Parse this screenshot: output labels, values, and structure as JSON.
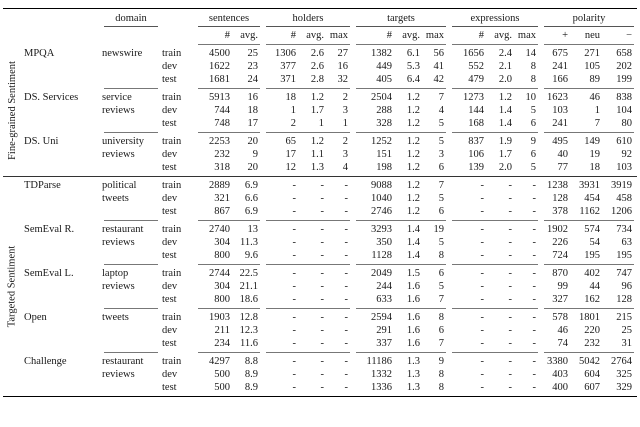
{
  "table": {
    "header": {
      "domain_label": "domain",
      "groups": [
        {
          "label": "sentences",
          "cols": [
            "#",
            "avg."
          ]
        },
        {
          "label": "holders",
          "cols": [
            "#",
            "avg.",
            "max"
          ]
        },
        {
          "label": "targets",
          "cols": [
            "#",
            "avg.",
            "max"
          ]
        },
        {
          "label": "expressions",
          "cols": [
            "#",
            "avg.",
            "max"
          ]
        },
        {
          "label": "polarity",
          "cols": [
            "+",
            "neu",
            "−"
          ]
        }
      ]
    },
    "sections": [
      {
        "label": "Fine-grained Sentiment",
        "groups": [
          {
            "dataset": "MPQA",
            "domain_lines": [
              "newswire"
            ],
            "rows": [
              {
                "split": "train",
                "cells": [
                  "4500",
                  "25",
                  "1306",
                  "2.6",
                  "27",
                  "1382",
                  "6.1",
                  "56",
                  "1656",
                  "2.4",
                  "14",
                  "675",
                  "271",
                  "658"
                ]
              },
              {
                "split": "dev",
                "cells": [
                  "1622",
                  "23",
                  "377",
                  "2.6",
                  "16",
                  "449",
                  "5.3",
                  "41",
                  "552",
                  "2.1",
                  "8",
                  "241",
                  "105",
                  "202"
                ]
              },
              {
                "split": "test",
                "cells": [
                  "1681",
                  "24",
                  "371",
                  "2.8",
                  "32",
                  "405",
                  "6.4",
                  "42",
                  "479",
                  "2.0",
                  "8",
                  "166",
                  "89",
                  "199"
                ]
              }
            ]
          },
          {
            "dataset": "DS. Services",
            "domain_lines": [
              "service",
              "reviews"
            ],
            "rows": [
              {
                "split": "train",
                "cells": [
                  "5913",
                  "16",
                  "18",
                  "1.2",
                  "2",
                  "2504",
                  "1.2",
                  "7",
                  "1273",
                  "1.2",
                  "10",
                  "1623",
                  "46",
                  "838"
                ]
              },
              {
                "split": "dev",
                "cells": [
                  "744",
                  "18",
                  "1",
                  "1.7",
                  "3",
                  "288",
                  "1.2",
                  "4",
                  "144",
                  "1.4",
                  "5",
                  "103",
                  "1",
                  "104"
                ]
              },
              {
                "split": "test",
                "cells": [
                  "748",
                  "17",
                  "2",
                  "1",
                  "1",
                  "328",
                  "1.2",
                  "5",
                  "168",
                  "1.4",
                  "6",
                  "241",
                  "7",
                  "80"
                ]
              }
            ]
          },
          {
            "dataset": "DS. Uni",
            "domain_lines": [
              "university",
              "reviews"
            ],
            "rows": [
              {
                "split": "train",
                "cells": [
                  "2253",
                  "20",
                  "65",
                  "1.2",
                  "2",
                  "1252",
                  "1.2",
                  "5",
                  "837",
                  "1.9",
                  "9",
                  "495",
                  "149",
                  "610"
                ]
              },
              {
                "split": "dev",
                "cells": [
                  "232",
                  "9",
                  "17",
                  "1.1",
                  "3",
                  "151",
                  "1.2",
                  "3",
                  "106",
                  "1.7",
                  "6",
                  "40",
                  "19",
                  "92"
                ]
              },
              {
                "split": "test",
                "cells": [
                  "318",
                  "20",
                  "12",
                  "1.3",
                  "4",
                  "198",
                  "1.2",
                  "6",
                  "139",
                  "2.0",
                  "5",
                  "77",
                  "18",
                  "103"
                ]
              }
            ]
          }
        ]
      },
      {
        "label": "Targeted Sentiment",
        "groups": [
          {
            "dataset": "TDParse",
            "domain_lines": [
              "political",
              "tweets"
            ],
            "rows": [
              {
                "split": "train",
                "cells": [
                  "2889",
                  "6.9",
                  "-",
                  "-",
                  "-",
                  "9088",
                  "1.2",
                  "7",
                  "-",
                  "-",
                  "-",
                  "1238",
                  "3931",
                  "3919"
                ]
              },
              {
                "split": "dev",
                "cells": [
                  "321",
                  "6.6",
                  "-",
                  "-",
                  "-",
                  "1040",
                  "1.2",
                  "5",
                  "-",
                  "-",
                  "-",
                  "128",
                  "454",
                  "458"
                ]
              },
              {
                "split": "test",
                "cells": [
                  "867",
                  "6.9",
                  "-",
                  "-",
                  "-",
                  "2746",
                  "1.2",
                  "6",
                  "-",
                  "-",
                  "-",
                  "378",
                  "1162",
                  "1206"
                ]
              }
            ]
          },
          {
            "dataset": "SemEval R.",
            "domain_lines": [
              "restaurant",
              "reviews"
            ],
            "rows": [
              {
                "split": "train",
                "cells": [
                  "2740",
                  "13",
                  "-",
                  "-",
                  "-",
                  "3293",
                  "1.4",
                  "19",
                  "-",
                  "-",
                  "-",
                  "1902",
                  "574",
                  "734"
                ]
              },
              {
                "split": "dev",
                "cells": [
                  "304",
                  "11.3",
                  "-",
                  "-",
                  "-",
                  "350",
                  "1.4",
                  "5",
                  "-",
                  "-",
                  "-",
                  "226",
                  "54",
                  "63"
                ]
              },
              {
                "split": "test",
                "cells": [
                  "800",
                  "9.6",
                  "-",
                  "-",
                  "-",
                  "1128",
                  "1.4",
                  "8",
                  "-",
                  "-",
                  "-",
                  "724",
                  "195",
                  "195"
                ]
              }
            ]
          },
          {
            "dataset": "SemEval L.",
            "domain_lines": [
              "laptop",
              "reviews"
            ],
            "rows": [
              {
                "split": "train",
                "cells": [
                  "2744",
                  "22.5",
                  "-",
                  "-",
                  "-",
                  "2049",
                  "1.5",
                  "6",
                  "-",
                  "-",
                  "-",
                  "870",
                  "402",
                  "747"
                ]
              },
              {
                "split": "dev",
                "cells": [
                  "304",
                  "21.1",
                  "-",
                  "-",
                  "-",
                  "244",
                  "1.6",
                  "5",
                  "-",
                  "-",
                  "-",
                  "99",
                  "44",
                  "96"
                ]
              },
              {
                "split": "test",
                "cells": [
                  "800",
                  "18.6",
                  "-",
                  "-",
                  "-",
                  "633",
                  "1.6",
                  "7",
                  "-",
                  "-",
                  "-",
                  "327",
                  "162",
                  "128"
                ]
              }
            ]
          },
          {
            "dataset": "Open",
            "domain_lines": [
              "tweets"
            ],
            "rows": [
              {
                "split": "train",
                "cells": [
                  "1903",
                  "12.8",
                  "-",
                  "-",
                  "-",
                  "2594",
                  "1.6",
                  "8",
                  "-",
                  "-",
                  "-",
                  "578",
                  "1801",
                  "215"
                ]
              },
              {
                "split": "dev",
                "cells": [
                  "211",
                  "12.3",
                  "-",
                  "-",
                  "-",
                  "291",
                  "1.6",
                  "6",
                  "-",
                  "-",
                  "-",
                  "46",
                  "220",
                  "25"
                ]
              },
              {
                "split": "test",
                "cells": [
                  "234",
                  "11.6",
                  "-",
                  "-",
                  "-",
                  "337",
                  "1.6",
                  "7",
                  "-",
                  "-",
                  "-",
                  "74",
                  "232",
                  "31"
                ]
              }
            ]
          },
          {
            "dataset": "Challenge",
            "domain_lines": [
              "restaurant",
              "reviews"
            ],
            "rows": [
              {
                "split": "train",
                "cells": [
                  "4297",
                  "8.8",
                  "-",
                  "-",
                  "-",
                  "11186",
                  "1.3",
                  "9",
                  "-",
                  "-",
                  "-",
                  "3380",
                  "5042",
                  "2764"
                ]
              },
              {
                "split": "dev",
                "cells": [
                  "500",
                  "8.9",
                  "-",
                  "-",
                  "-",
                  "1332",
                  "1.3",
                  "8",
                  "-",
                  "-",
                  "-",
                  "403",
                  "604",
                  "325"
                ]
              },
              {
                "split": "test",
                "cells": [
                  "500",
                  "8.9",
                  "-",
                  "-",
                  "-",
                  "1336",
                  "1.3",
                  "8",
                  "-",
                  "-",
                  "-",
                  "400",
                  "607",
                  "329"
                ]
              }
            ]
          }
        ]
      }
    ]
  }
}
